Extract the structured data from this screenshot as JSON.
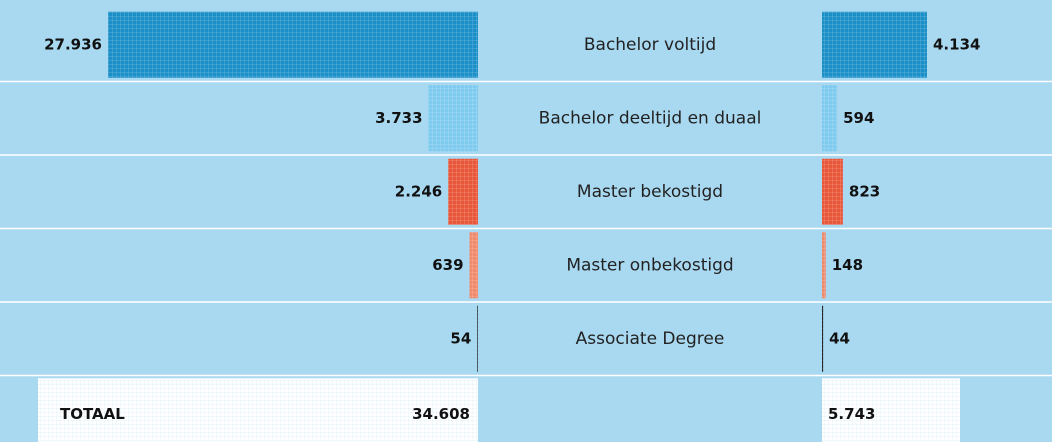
{
  "chart_data": {
    "type": "bar",
    "categories": [
      "Bachelor voltijd",
      "Bachelor deeltijd en duaal",
      "Master bekostigd",
      "Master onbekostigd",
      "Associate Degree"
    ],
    "colors": [
      "#1b8fc7",
      "#7fcbef",
      "#e9573a",
      "#f08a6d",
      "#222222"
    ],
    "series": [
      {
        "values": [
          27936,
          3733,
          2246,
          639,
          54
        ],
        "value_labels": [
          "27.936",
          "3.733",
          "2.246",
          "639",
          "54"
        ]
      },
      {
        "values": [
          4134,
          594,
          823,
          148,
          44
        ],
        "value_labels": [
          "4.134",
          "594",
          "823",
          "148",
          "44"
        ]
      }
    ],
    "total_label": "TOTAAL",
    "totals": [
      34608,
      5743
    ],
    "total_labels": [
      "34.608",
      "5.743"
    ]
  }
}
